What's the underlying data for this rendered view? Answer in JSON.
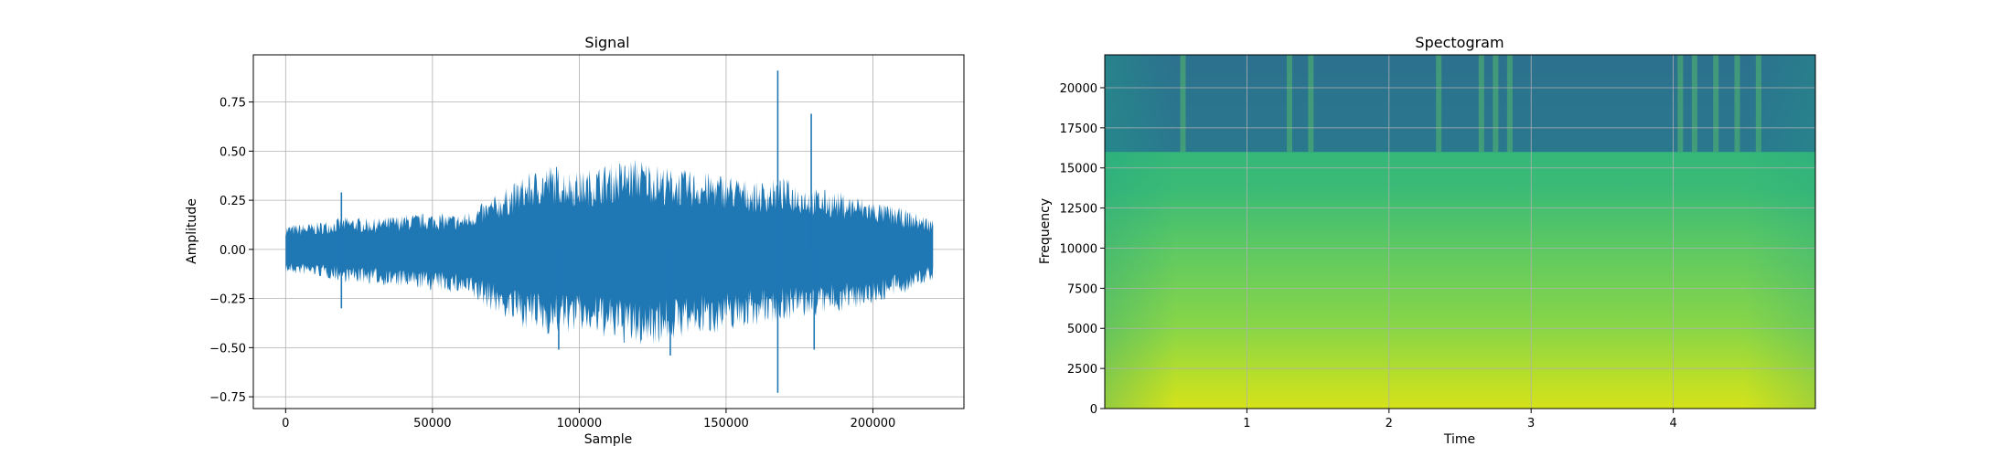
{
  "chart_data": [
    {
      "type": "line",
      "title": "Signal",
      "xlabel": "Sample",
      "ylabel": "Amplitude",
      "xlim": [
        -11000,
        231000
      ],
      "ylim": [
        -0.81,
        0.99
      ],
      "grid": true,
      "x_ticks": [
        0,
        50000,
        100000,
        150000,
        200000
      ],
      "x_tick_labels": [
        "0",
        "50000",
        "100000",
        "150000",
        "200000"
      ],
      "y_ticks": [
        -0.75,
        -0.5,
        -0.25,
        0.0,
        0.25,
        0.5,
        0.75
      ],
      "y_tick_labels": [
        "−0.75",
        "−0.50",
        "−0.25",
        "0.00",
        "0.25",
        "0.50",
        "0.75"
      ],
      "series": [
        {
          "color": "#1f77b4",
          "x_range": [
            0,
            220500
          ],
          "envelope": {
            "x": [
              0,
              10000,
              20000,
              30000,
              40000,
              50000,
              60000,
              70000,
              80000,
              90000,
              100000,
              110000,
              120000,
              130000,
              140000,
              150000,
              160000,
              170000,
              180000,
              190000,
              200000,
              210000,
              220500
            ],
            "upper": [
              0.12,
              0.13,
              0.16,
              0.15,
              0.17,
              0.18,
              0.17,
              0.25,
              0.35,
              0.42,
              0.38,
              0.42,
              0.45,
              0.4,
              0.38,
              0.37,
              0.33,
              0.35,
              0.3,
              0.28,
              0.24,
              0.2,
              0.15
            ],
            "lower": [
              -0.12,
              -0.13,
              -0.16,
              -0.17,
              -0.19,
              -0.2,
              -0.22,
              -0.3,
              -0.38,
              -0.42,
              -0.4,
              -0.44,
              -0.48,
              -0.45,
              -0.42,
              -0.4,
              -0.37,
              -0.35,
              -0.33,
              -0.3,
              -0.27,
              -0.22,
              -0.15
            ]
          },
          "spikes": [
            {
              "x": 19000,
              "y": 0.29
            },
            {
              "x": 19000,
              "y": -0.3
            },
            {
              "x": 93000,
              "y": -0.51
            },
            {
              "x": 167600,
              "y": 0.91
            },
            {
              "x": 167600,
              "y": -0.73
            },
            {
              "x": 179000,
              "y": 0.69
            },
            {
              "x": 180000,
              "y": -0.51
            },
            {
              "x": 131000,
              "y": -0.54
            }
          ]
        }
      ]
    },
    {
      "type": "heatmap",
      "title": "Spectogram",
      "xlabel": "Time",
      "ylabel": "Frequency",
      "xlim": [
        0,
        5.0
      ],
      "ylim": [
        0,
        22050
      ],
      "grid": true,
      "colormap": "viridis",
      "x_ticks": [
        1,
        2,
        3,
        4
      ],
      "x_tick_labels": [
        "1",
        "2",
        "3",
        "4"
      ],
      "y_ticks": [
        0,
        2500,
        5000,
        7500,
        10000,
        12500,
        15000,
        17500,
        20000
      ],
      "y_tick_labels": [
        "0",
        "2500",
        "5000",
        "7500",
        "10000",
        "12500",
        "15000",
        "17500",
        "20000"
      ],
      "cutoff_frequency": 16000,
      "bursts_time": [
        0.55,
        1.3,
        1.45,
        2.35,
        2.65,
        2.75,
        2.85,
        4.05,
        4.15,
        4.3,
        4.45,
        4.6
      ]
    }
  ]
}
